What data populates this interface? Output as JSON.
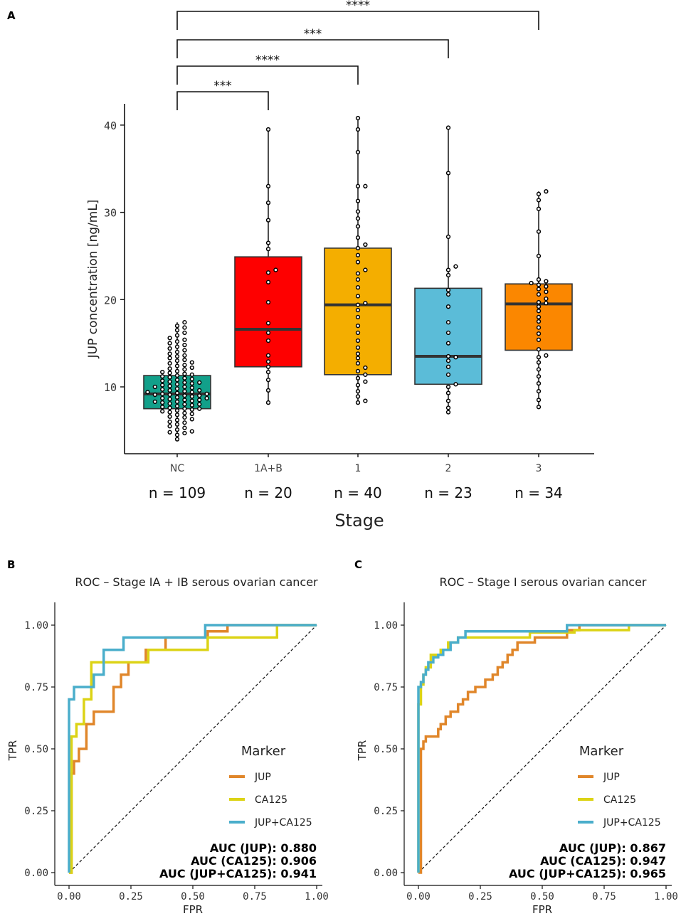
{
  "panel_labels": {
    "a": "A",
    "b": "B",
    "c": "C"
  },
  "colors": {
    "NC": "#12a08a",
    "1A+B": "#fe0000",
    "1": "#f4ae00",
    "2": "#5bbcd8",
    "3": "#fb8700",
    "JUP": "#e0862a",
    "CA125": "#dcd315",
    "JUP+CA125": "#4aaecb"
  },
  "chart_data": [
    {
      "type": "box",
      "panel": "A",
      "xlabel": "Stage",
      "ylabel": "JUP concentration [ng/mL]",
      "ylim": [
        3,
        44
      ],
      "yticks": [
        10,
        20,
        30,
        40
      ],
      "categories": [
        "NC",
        "1A+B",
        "1",
        "2",
        "3"
      ],
      "counts": [
        "n = 109",
        "n = 20",
        "n = 40",
        "n = 23",
        "n = 34"
      ],
      "boxes": [
        {
          "name": "NC",
          "q1": 7.5,
          "median": 9.2,
          "q3": 11.3,
          "whisker_low": 4.0,
          "whisker_high": 17.4,
          "points": [
            4.0,
            4.5,
            4.7,
            4.8,
            4.9,
            5.1,
            5.3,
            5.5,
            5.7,
            5.9,
            6.0,
            6.2,
            6.3,
            6.5,
            6.6,
            6.8,
            6.9,
            7.0,
            7.1,
            7.2,
            7.3,
            7.4,
            7.5,
            7.5,
            7.6,
            7.7,
            7.8,
            7.9,
            8.0,
            8.0,
            8.1,
            8.2,
            8.3,
            8.3,
            8.4,
            8.5,
            8.5,
            8.6,
            8.7,
            8.7,
            8.8,
            8.9,
            9.0,
            9.0,
            9.1,
            9.1,
            9.2,
            9.2,
            9.3,
            9.4,
            9.4,
            9.5,
            9.6,
            9.6,
            9.7,
            9.8,
            9.9,
            10.0,
            10.0,
            10.1,
            10.2,
            10.3,
            10.4,
            10.5,
            10.5,
            10.6,
            10.7,
            10.8,
            10.9,
            11.0,
            11.1,
            11.2,
            11.3,
            11.4,
            11.5,
            11.6,
            11.7,
            11.8,
            12.0,
            12.1,
            12.2,
            12.4,
            12.5,
            12.7,
            12.8,
            13.0,
            13.1,
            13.3,
            13.5,
            13.6,
            13.8,
            14.0,
            14.2,
            14.4,
            14.6,
            14.8,
            15.0,
            15.2,
            15.4,
            15.6,
            15.9,
            16.2,
            16.5,
            16.8,
            17.0,
            17.4
          ]
        },
        {
          "name": "1A+B",
          "q1": 12.3,
          "median": 16.6,
          "q3": 24.9,
          "whisker_low": 8.2,
          "whisker_high": 39.5,
          "points": [
            8.2,
            9.6,
            10.8,
            11.7,
            12.3,
            12.9,
            13.6,
            15.3,
            16.2,
            17.3,
            19.7,
            22.0,
            23.1,
            23.4,
            25.8,
            26.5,
            29.1,
            31.1,
            33.0,
            39.5
          ]
        },
        {
          "name": "1",
          "q1": 11.4,
          "median": 19.4,
          "q3": 25.9,
          "whisker_low": 8.2,
          "whisker_high": 40.8,
          "points": [
            8.2,
            8.4,
            8.9,
            9.5,
            10.2,
            10.6,
            11.0,
            11.4,
            11.8,
            12.2,
            12.7,
            13.3,
            13.8,
            14.5,
            15.3,
            16.2,
            17.0,
            18.0,
            18.8,
            19.4,
            19.6,
            20.4,
            21.4,
            22.3,
            23.0,
            23.4,
            24.3,
            25.1,
            25.9,
            26.3,
            27.1,
            28.4,
            29.3,
            30.1,
            31.3,
            33.0,
            33.0,
            36.9,
            39.5,
            40.8
          ]
        },
        {
          "name": "2",
          "q1": 10.3,
          "median": 13.5,
          "q3": 21.3,
          "whisker_low": 7.1,
          "whisker_high": 39.7,
          "points": [
            7.1,
            7.6,
            8.4,
            9.3,
            10.0,
            10.3,
            11.4,
            12.3,
            13.4,
            13.5,
            15.0,
            16.2,
            17.4,
            19.2,
            20.6,
            21.1,
            22.8,
            23.4,
            23.8,
            27.2,
            34.5,
            39.7,
            13.0
          ]
        },
        {
          "name": "3",
          "q1": 14.2,
          "median": 19.5,
          "q3": 21.8,
          "whisker_low": 7.7,
          "whisker_high": 32.4,
          "points": [
            7.7,
            8.5,
            9.5,
            10.4,
            11.2,
            12.0,
            12.8,
            13.4,
            13.6,
            14.3,
            15.4,
            16.1,
            16.8,
            17.5,
            18.0,
            18.7,
            19.2,
            19.7,
            20.1,
            20.6,
            20.9,
            21.2,
            21.5,
            21.7,
            21.9,
            22.1,
            22.3,
            25.0,
            27.8,
            30.4,
            31.4,
            32.1,
            32.4,
            19.6
          ]
        }
      ],
      "significance": [
        {
          "from": "NC",
          "to": "1A+B",
          "label": "***",
          "level": 1
        },
        {
          "from": "NC",
          "to": "1",
          "label": "****",
          "level": 2
        },
        {
          "from": "NC",
          "to": "2",
          "label": "***",
          "level": 3
        },
        {
          "from": "NC",
          "to": "3",
          "label": "****",
          "level": 4
        }
      ]
    },
    {
      "type": "line",
      "panel": "B",
      "title": "ROC – Stage IA + IB serous ovarian cancer",
      "xlabel": "FPR",
      "ylabel": "TPR",
      "xlim": [
        0,
        1
      ],
      "ylim": [
        0,
        1
      ],
      "ticks": [
        "0.00",
        "0.25",
        "0.50",
        "0.75",
        "1.00"
      ],
      "legend_title": "Marker",
      "series": [
        {
          "name": "JUP",
          "x": [
            0,
            0.01,
            0.01,
            0.02,
            0.02,
            0.04,
            0.04,
            0.07,
            0.07,
            0.1,
            0.1,
            0.18,
            0.18,
            0.21,
            0.21,
            0.24,
            0.24,
            0.31,
            0.31,
            0.39,
            0.39,
            0.42,
            0.42,
            0.56,
            0.56,
            0.64,
            0.64,
            0.76,
            0.76,
            1.0
          ],
          "y": [
            0,
            0,
            0.4,
            0.4,
            0.45,
            0.45,
            0.5,
            0.5,
            0.6,
            0.6,
            0.65,
            0.65,
            0.75,
            0.75,
            0.8,
            0.8,
            0.85,
            0.85,
            0.9,
            0.9,
            0.95,
            0.95,
            0.95,
            0.95,
            0.975,
            0.975,
            1.0,
            1.0,
            1.0,
            1.0
          ]
        },
        {
          "name": "CA125",
          "x": [
            0,
            0.01,
            0.01,
            0.03,
            0.03,
            0.06,
            0.06,
            0.09,
            0.09,
            0.16,
            0.16,
            0.24,
            0.24,
            0.32,
            0.32,
            0.48,
            0.48,
            0.56,
            0.56,
            0.8,
            0.8,
            0.84,
            0.84,
            1.0
          ],
          "y": [
            0,
            0,
            0.55,
            0.55,
            0.6,
            0.6,
            0.7,
            0.7,
            0.85,
            0.85,
            0.85,
            0.85,
            0.85,
            0.85,
            0.9,
            0.9,
            0.9,
            0.9,
            0.95,
            0.95,
            0.95,
            0.95,
            1.0,
            1.0
          ]
        },
        {
          "name": "JUP+CA125",
          "x": [
            0,
            0.0,
            0.0,
            0.02,
            0.02,
            0.06,
            0.06,
            0.1,
            0.1,
            0.14,
            0.14,
            0.22,
            0.22,
            0.55,
            0.55,
            1.0
          ],
          "y": [
            0,
            0,
            0.7,
            0.7,
            0.75,
            0.75,
            0.75,
            0.75,
            0.8,
            0.8,
            0.9,
            0.9,
            0.95,
            0.95,
            1.0,
            1.0
          ]
        }
      ],
      "auc": [
        "AUC (JUP): 0.880",
        "AUC (CA125): 0.906",
        "AUC (JUP+CA125): 0.941"
      ]
    },
    {
      "type": "line",
      "panel": "C",
      "title": "ROC – Stage I serous ovarian cancer",
      "xlabel": "FPR",
      "ylabel": "TPR",
      "xlim": [
        0,
        1
      ],
      "ylim": [
        0,
        1
      ],
      "ticks": [
        "0.00",
        "0.25",
        "0.50",
        "0.75",
        "1.00"
      ],
      "legend_title": "Marker",
      "series": [
        {
          "name": "JUP",
          "x": [
            0,
            0.01,
            0.01,
            0.02,
            0.02,
            0.03,
            0.03,
            0.08,
            0.08,
            0.09,
            0.09,
            0.11,
            0.11,
            0.13,
            0.13,
            0.16,
            0.16,
            0.18,
            0.18,
            0.2,
            0.2,
            0.23,
            0.23,
            0.27,
            0.27,
            0.3,
            0.3,
            0.32,
            0.32,
            0.34,
            0.34,
            0.36,
            0.36,
            0.38,
            0.38,
            0.4,
            0.4,
            0.43,
            0.43,
            0.47,
            0.47,
            0.6,
            0.6,
            0.65,
            0.65,
            1.0
          ],
          "y": [
            0,
            0,
            0.5,
            0.5,
            0.53,
            0.53,
            0.55,
            0.55,
            0.58,
            0.58,
            0.6,
            0.6,
            0.63,
            0.63,
            0.65,
            0.65,
            0.68,
            0.68,
            0.7,
            0.7,
            0.73,
            0.73,
            0.75,
            0.75,
            0.78,
            0.78,
            0.8,
            0.8,
            0.83,
            0.83,
            0.85,
            0.85,
            0.88,
            0.88,
            0.9,
            0.9,
            0.93,
            0.93,
            0.93,
            0.93,
            0.95,
            0.95,
            0.98,
            0.98,
            1.0,
            1.0
          ]
        },
        {
          "name": "CA125",
          "x": [
            0,
            0.0,
            0.0,
            0.01,
            0.01,
            0.02,
            0.02,
            0.03,
            0.03,
            0.05,
            0.05,
            0.09,
            0.09,
            0.12,
            0.12,
            0.16,
            0.16,
            0.45,
            0.45,
            0.63,
            0.63,
            0.85,
            0.85,
            1.0
          ],
          "y": [
            0,
            0,
            0.68,
            0.68,
            0.76,
            0.76,
            0.8,
            0.8,
            0.83,
            0.83,
            0.88,
            0.88,
            0.9,
            0.9,
            0.93,
            0.93,
            0.95,
            0.95,
            0.97,
            0.97,
            0.98,
            0.98,
            1.0,
            1.0
          ]
        },
        {
          "name": "JUP+CA125",
          "x": [
            0,
            0.0,
            0.0,
            0.01,
            0.01,
            0.02,
            0.02,
            0.03,
            0.03,
            0.04,
            0.04,
            0.06,
            0.06,
            0.08,
            0.08,
            0.1,
            0.1,
            0.13,
            0.13,
            0.16,
            0.16,
            0.19,
            0.19,
            0.6,
            0.6,
            1.0
          ],
          "y": [
            0,
            0,
            0.75,
            0.75,
            0.77,
            0.77,
            0.8,
            0.8,
            0.82,
            0.82,
            0.85,
            0.85,
            0.87,
            0.87,
            0.88,
            0.88,
            0.9,
            0.9,
            0.93,
            0.93,
            0.95,
            0.95,
            0.975,
            0.975,
            1.0,
            1.0
          ]
        }
      ],
      "auc": [
        "AUC (JUP): 0.867",
        "AUC (CA125): 0.947",
        "AUC (JUP+CA125): 0.965"
      ]
    }
  ]
}
